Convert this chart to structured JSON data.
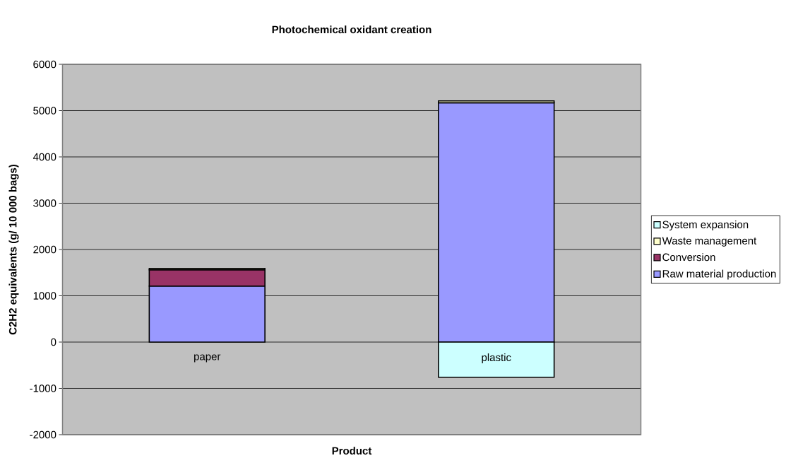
{
  "chart_data": {
    "type": "bar",
    "title": "Photochemical oxidant creation",
    "xlabel": "Product",
    "ylabel": "C2H2 equivalents (g/ 10 000 bags)",
    "categories": [
      "paper",
      "plastic"
    ],
    "stacked": true,
    "series": [
      {
        "name": "Raw material production",
        "color": "#9999ff",
        "values": [
          1210,
          5170
        ]
      },
      {
        "name": "Conversion",
        "color": "#993366",
        "values": [
          350,
          0
        ]
      },
      {
        "name": "Waste management",
        "color": "#ffffcc",
        "values": [
          30,
          40
        ]
      },
      {
        "name": "System expansion",
        "color": "#ccffff",
        "values": [
          0,
          -760
        ]
      }
    ],
    "ylim": [
      -2000,
      6000
    ],
    "yticks": [
      -2000,
      -1000,
      0,
      1000,
      2000,
      3000,
      4000,
      5000,
      6000
    ],
    "grid": "y",
    "legend": "right"
  }
}
